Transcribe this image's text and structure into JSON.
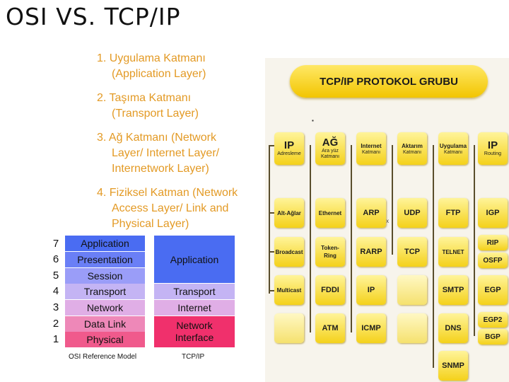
{
  "title": "OSI VS. TCP/IP",
  "layers": [
    {
      "main": "1. Uygulama Katmanı",
      "sub": [
        "(Application Layer)"
      ]
    },
    {
      "main": "2. Taşıma Katmanı",
      "sub": [
        "(Transport Layer)"
      ]
    },
    {
      "main": "3. Ağ Katmanı (Network",
      "sub": [
        "Layer/ Internet Layer/",
        "Internetwork Layer)"
      ]
    },
    {
      "main": "4. Fiziksel Katman (Network",
      "sub": [
        "Access Layer/ Link and",
        "Physical Layer)"
      ]
    }
  ],
  "osi_model": {
    "caption": "OSI Reference Model",
    "layers": [
      {
        "num": "7",
        "label": "Application",
        "color": "#4a6cf2"
      },
      {
        "num": "6",
        "label": "Presentation",
        "color": "#6a7ff6"
      },
      {
        "num": "5",
        "label": "Session",
        "color": "#9a9df8"
      },
      {
        "num": "4",
        "label": "Transport",
        "color": "#c4b4f4"
      },
      {
        "num": "3",
        "label": "Network",
        "color": "#e0aee6"
      },
      {
        "num": "2",
        "label": "Data Link",
        "color": "#ee88b8"
      },
      {
        "num": "1",
        "label": "Physical",
        "color": "#f05a8c"
      }
    ]
  },
  "tcpip_model": {
    "caption": "TCP/IP",
    "layers": [
      {
        "label": "Application",
        "color": "#4a6cf2"
      },
      {
        "label": "Transport",
        "color": "#c4b4f4"
      },
      {
        "label": "Internet",
        "color": "#e0aee6"
      },
      {
        "label": "Network Interface",
        "color": "#f0306c"
      }
    ]
  },
  "protocol_group": {
    "banner": "TCP/IP PROTOKOL GRUBU",
    "headers": [
      {
        "big": "IP",
        "small": "Adresleme"
      },
      {
        "big": "AĞ",
        "small": "Ara yüz Katmanı"
      },
      {
        "big": "Internet",
        "small": "Katmanı"
      },
      {
        "big": "Aktarım",
        "small": "Katmanı"
      },
      {
        "big": "Uygulama",
        "small": "Katmanı"
      },
      {
        "big": "IP",
        "small": "Routing"
      }
    ],
    "col_ip": [
      "Alt-Ağlar",
      "Broadcast",
      "Multicast"
    ],
    "col_ag": [
      "Ethernet",
      "Token-Ring",
      "FDDI",
      "ATM"
    ],
    "col_internet": [
      "ARP",
      "RARP",
      "IP",
      "ICMP"
    ],
    "col_aktarim": [
      "UDP",
      "TCP"
    ],
    "col_uygulama": [
      "FTP",
      "TELNET",
      "SMTP",
      "DNS",
      "SNMP"
    ],
    "col_routing": [
      "IGP",
      "RIP",
      "OSFP",
      "EGP",
      "EGP2",
      "BGP"
    ],
    "marker": "x"
  }
}
